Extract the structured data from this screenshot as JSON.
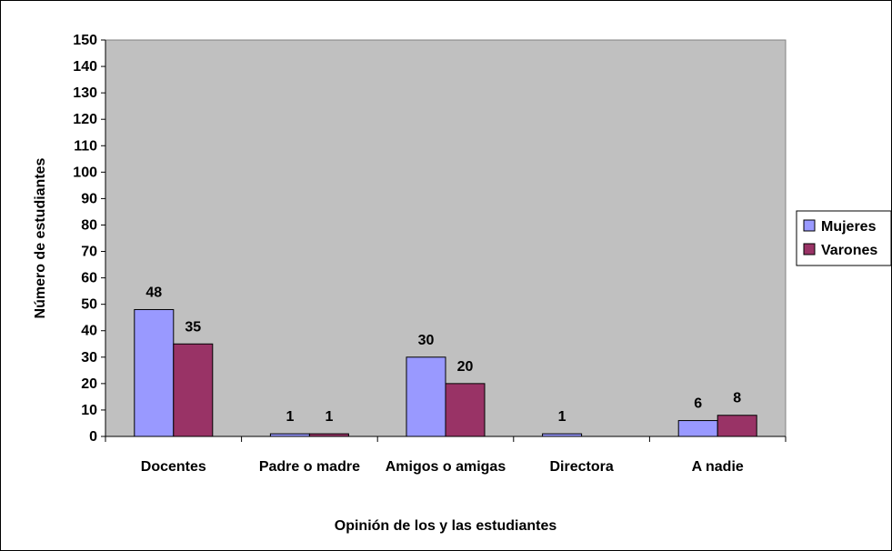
{
  "chart_data": {
    "type": "bar",
    "title": "",
    "xlabel": "Opinión de los y las estudiantes",
    "ylabel": "Número de estudiantes",
    "ylim": [
      0,
      150
    ],
    "ytick_step": 10,
    "grid": false,
    "legend_position": "right",
    "categories": [
      "Docentes",
      "Padre o madre",
      "Amigos o amigas",
      "Directora",
      "A nadie"
    ],
    "series": [
      {
        "name": "Mujeres",
        "color": "#9999ff",
        "values": [
          48,
          1,
          30,
          1,
          6
        ]
      },
      {
        "name": "Varones",
        "color": "#993366",
        "values": [
          35,
          1,
          20,
          null,
          8
        ]
      }
    ],
    "plot_background": "#c0c0c0"
  }
}
